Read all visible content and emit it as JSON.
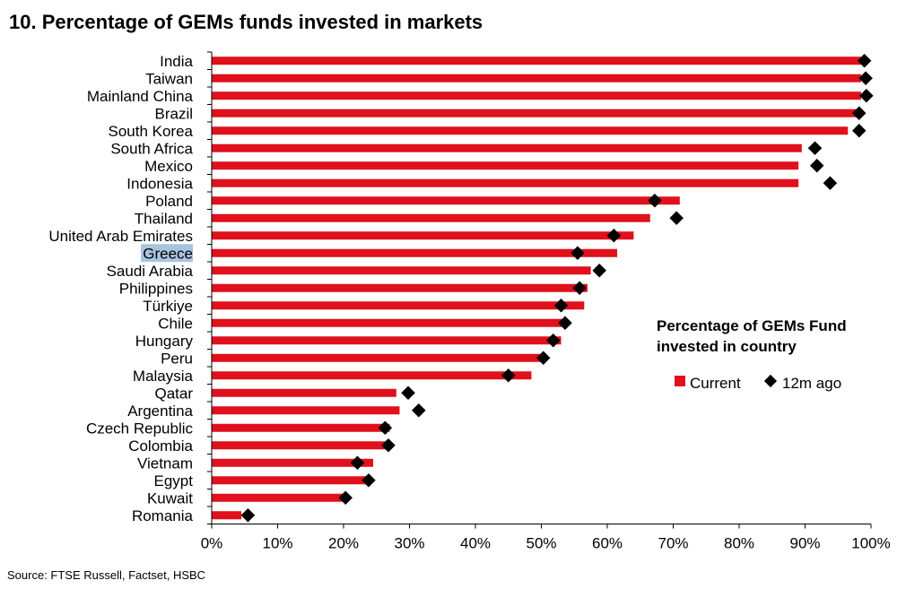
{
  "title": "10. Percentage of GEMs funds invested in markets",
  "source": "Source: FTSE Russell, Factset, HSBC",
  "chart_data": {
    "type": "bar",
    "orientation": "horizontal",
    "categories": [
      "India",
      "Taiwan",
      "Mainland China",
      "Brazil",
      "South Korea",
      "South Africa",
      "Mexico",
      "Indonesia",
      "Poland",
      "Thailand",
      "United Arab Emirates",
      "Greece",
      "Saudi Arabia",
      "Philippines",
      "Türkiye",
      "Chile",
      "Hungary",
      "Peru",
      "Malaysia",
      "Qatar",
      "Argentina",
      "Czech Republic",
      "Colombia",
      "Vietnam",
      "Egypt",
      "Kuwait",
      "Romania"
    ],
    "highlighted_category": "Greece",
    "series": [
      {
        "name": "Current",
        "type": "bar",
        "color": "#e0101c",
        "values": [
          98.5,
          98.5,
          98.5,
          98.0,
          96.5,
          89.5,
          89.0,
          89.0,
          71.0,
          66.5,
          64.0,
          61.5,
          57.5,
          57.0,
          56.5,
          53.5,
          53.0,
          50.0,
          48.5,
          28.0,
          28.5,
          27.0,
          27.0,
          24.5,
          24.0,
          20.0,
          4.5
        ]
      },
      {
        "name": "12m ago",
        "type": "marker",
        "color": "#000000",
        "values": [
          99.0,
          99.2,
          99.3,
          98.2,
          98.2,
          91.5,
          91.8,
          93.8,
          67.2,
          70.5,
          61.0,
          55.5,
          58.8,
          55.8,
          53.0,
          53.6,
          51.8,
          50.3,
          45.0,
          29.8,
          31.4,
          26.3,
          26.8,
          22.1,
          23.8,
          20.3,
          5.5
        ]
      }
    ],
    "x_ticks": [
      "0%",
      "10%",
      "20%",
      "30%",
      "40%",
      "50%",
      "60%",
      "70%",
      "80%",
      "90%",
      "100%"
    ],
    "xlim": [
      0,
      100
    ],
    "legend": {
      "title_lines": [
        "Percentage of GEMs Fund",
        "invested in country"
      ],
      "items": [
        "Current",
        "12m ago"
      ],
      "placement": "right"
    }
  }
}
